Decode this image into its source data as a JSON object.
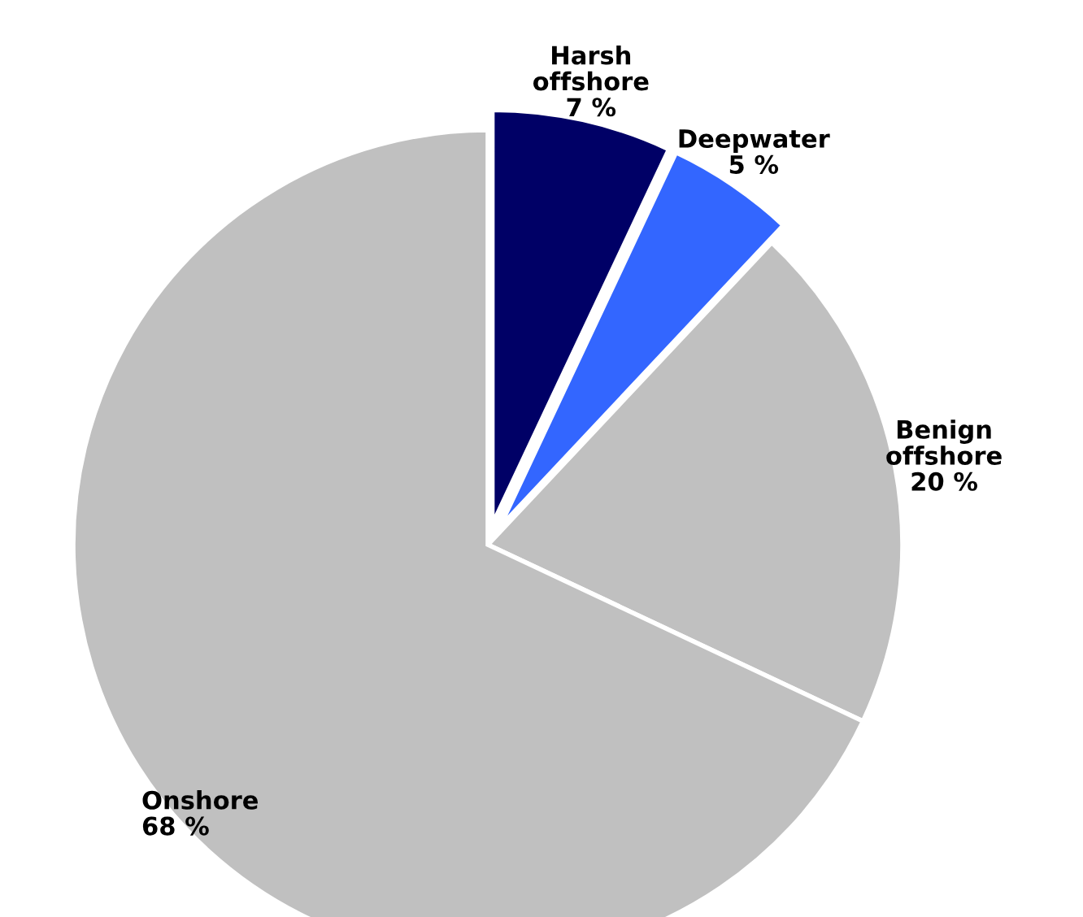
{
  "chart_data": {
    "type": "pie",
    "categories": [
      "Harsh offshore",
      "Deepwater",
      "Benign offshore",
      "Onshore"
    ],
    "values": [
      7,
      5,
      20,
      68
    ],
    "value_labels": [
      "7 %",
      "5 %",
      "20 %",
      "68 %"
    ],
    "colors": [
      "#000066",
      "#3366ff",
      "#c0c0c0",
      "#c0c0c0"
    ],
    "legend": false
  }
}
